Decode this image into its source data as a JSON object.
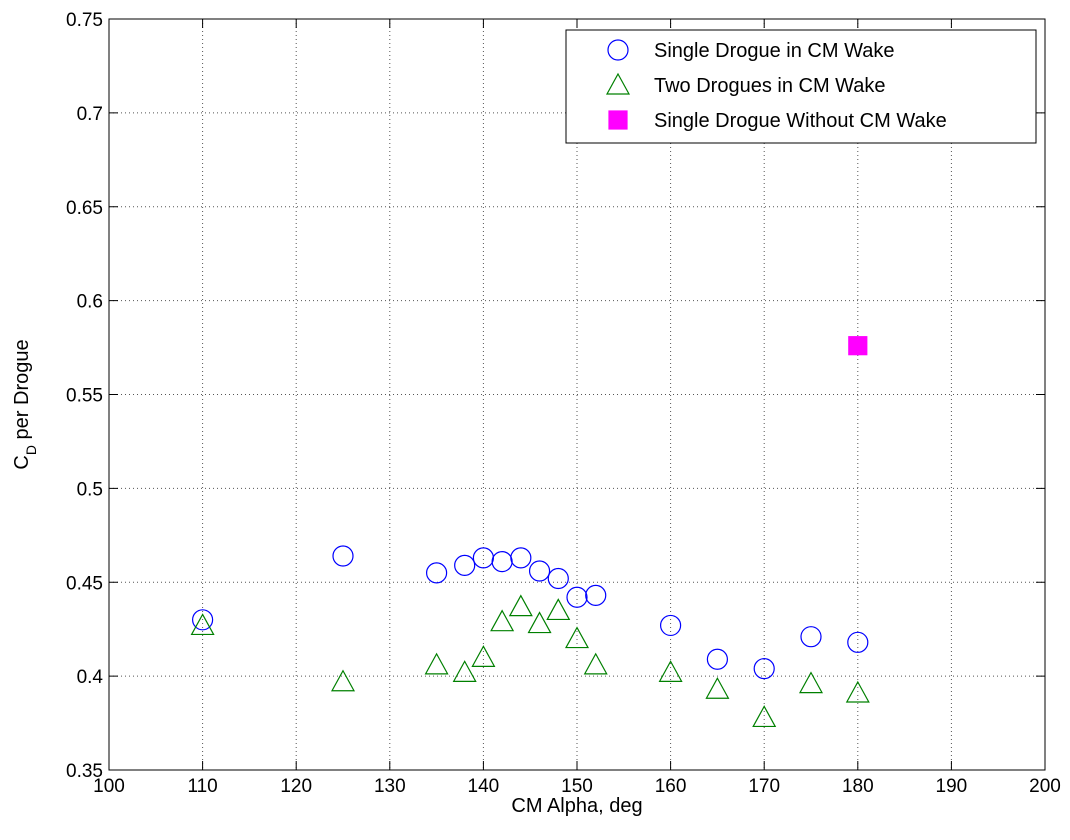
{
  "chart_data": {
    "type": "scatter",
    "title": "",
    "xlabel": "CM Alpha, deg",
    "ylabel_main": "C",
    "ylabel_sub": "D",
    "ylabel_rest": " per Drogue",
    "xlim": [
      100,
      200
    ],
    "ylim": [
      0.35,
      0.75
    ],
    "xticks": [
      100,
      110,
      120,
      130,
      140,
      150,
      160,
      170,
      180,
      190,
      200
    ],
    "yticks": [
      0.35,
      0.4,
      0.45,
      0.5,
      0.55,
      0.6,
      0.65,
      0.7,
      0.75
    ],
    "xtick_labels": [
      "100",
      "110",
      "120",
      "130",
      "140",
      "150",
      "160",
      "170",
      "180",
      "190",
      "200"
    ],
    "ytick_labels": [
      "0.35",
      "0.4",
      "0.45",
      "0.5",
      "0.55",
      "0.6",
      "0.65",
      "0.7",
      "0.75"
    ],
    "grid": true,
    "legend_position": "top-right",
    "series": [
      {
        "name": "Single Drogue in CM Wake",
        "marker": "circle",
        "color": "#0000ff",
        "filled": false,
        "points": [
          [
            110,
            0.43
          ],
          [
            125,
            0.464
          ],
          [
            135,
            0.455
          ],
          [
            138,
            0.459
          ],
          [
            140,
            0.463
          ],
          [
            142,
            0.461
          ],
          [
            144,
            0.463
          ],
          [
            146,
            0.456
          ],
          [
            148,
            0.452
          ],
          [
            150,
            0.442
          ],
          [
            152,
            0.443
          ],
          [
            160,
            0.427
          ],
          [
            165,
            0.409
          ],
          [
            170,
            0.404
          ],
          [
            175,
            0.421
          ],
          [
            180,
            0.418
          ]
        ]
      },
      {
        "name": "Two Drogues in CM Wake",
        "marker": "triangle",
        "color": "#008000",
        "filled": false,
        "points": [
          [
            110,
            0.427
          ],
          [
            125,
            0.397
          ],
          [
            135,
            0.406
          ],
          [
            138,
            0.402
          ],
          [
            140,
            0.41
          ],
          [
            142,
            0.429
          ],
          [
            144,
            0.437
          ],
          [
            146,
            0.428
          ],
          [
            148,
            0.435
          ],
          [
            150,
            0.42
          ],
          [
            152,
            0.406
          ],
          [
            160,
            0.402
          ],
          [
            165,
            0.393
          ],
          [
            170,
            0.378
          ],
          [
            175,
            0.396
          ],
          [
            180,
            0.391
          ]
        ]
      },
      {
        "name": "Single Drogue Without CM Wake",
        "marker": "square",
        "color": "#ff00ff",
        "filled": true,
        "points": [
          [
            180,
            0.576
          ]
        ]
      }
    ]
  }
}
